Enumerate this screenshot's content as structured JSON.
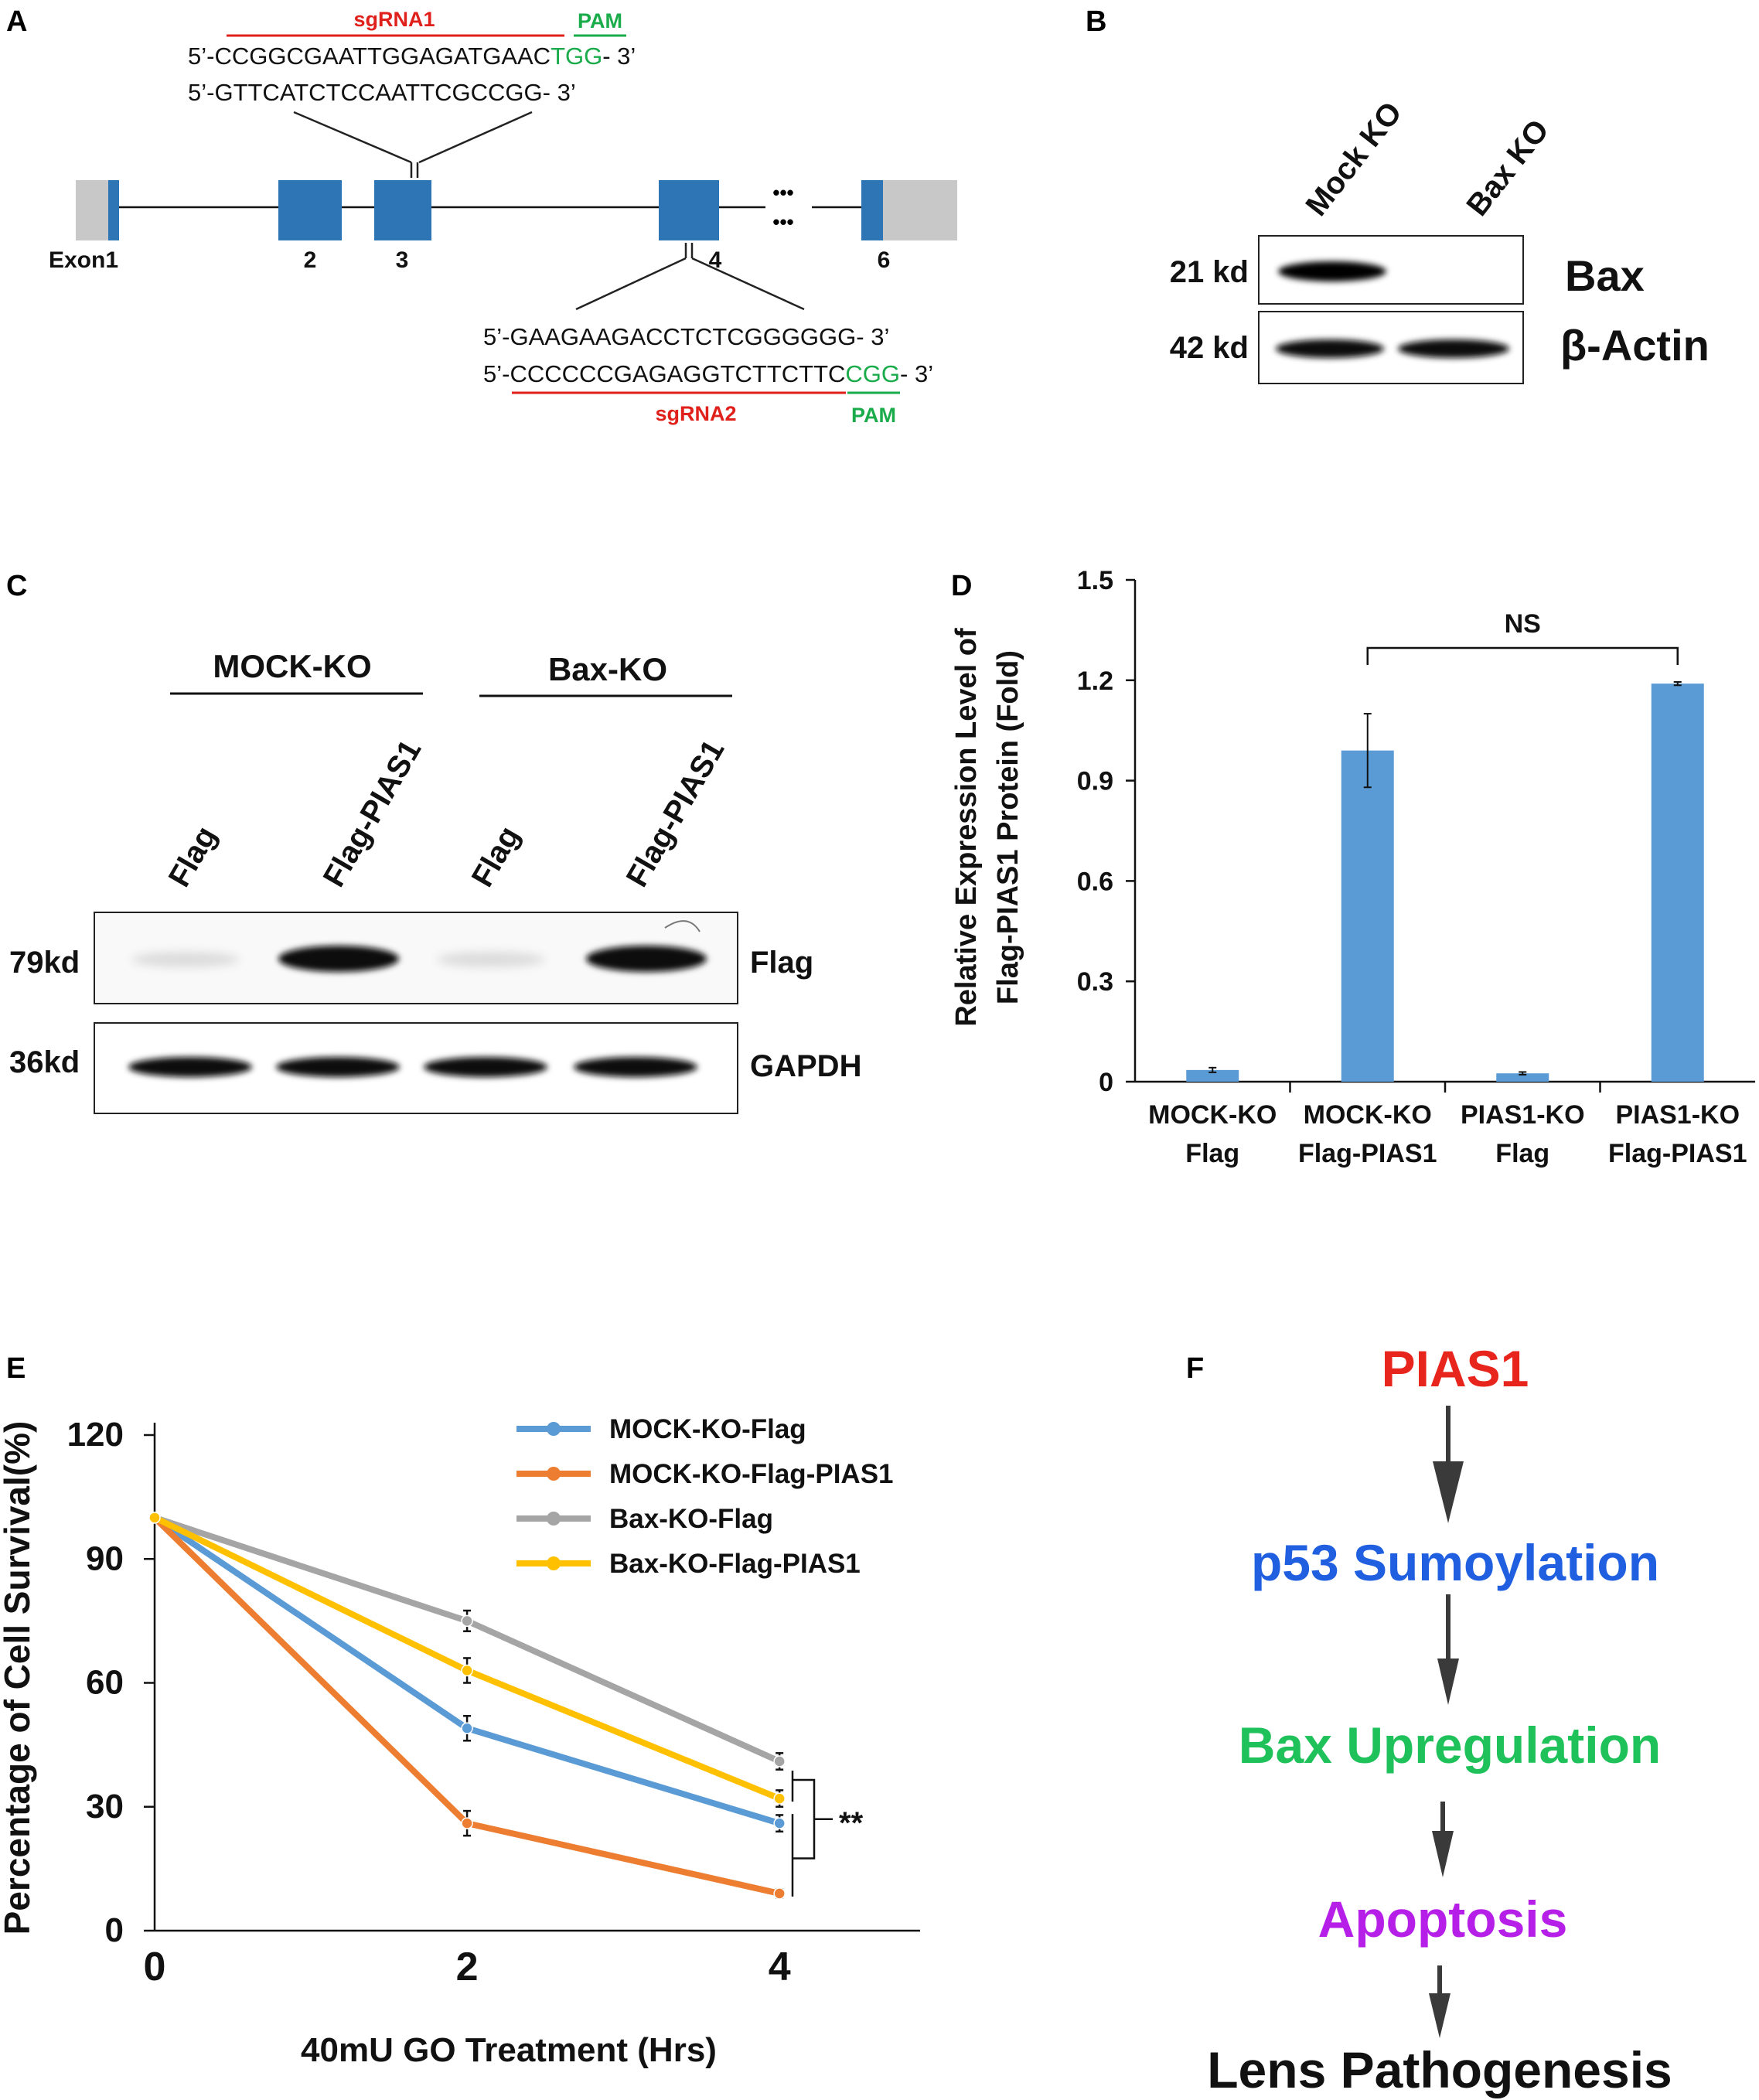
{
  "panel_labels": {
    "a": "A",
    "b": "B",
    "c": "C",
    "d": "D",
    "e": "E",
    "f": "F"
  },
  "colors": {
    "exon": "#2e75b6",
    "utr": "#c8c8c8",
    "sgrna": "#e0201b",
    "pam": "#1aab4b",
    "bar": "#5b9bd5"
  },
  "panel_a": {
    "sgrna1_label": "sgRNA1",
    "pam1_label": "PAM",
    "seq1_top_main": "5’-CCGGCGAATTGGAGATGAAC",
    "seq1_top_pam": "TGG",
    "seq1_top_end": "- 3’",
    "seq1_bottom": "5’-GTTCATCTCCAATTCGCCGG- 3’",
    "seq2_top": "5’-GAAGAAGACCTCTCGGGGGG- 3’",
    "seq2_bottom_main": "5’-CCCCCCGAGAGGTCTTCTTC",
    "seq2_bottom_pam": "CGG",
    "seq2_bottom_end": "- 3’",
    "sgrna2_label": "sgRNA2",
    "pam2_label": "PAM",
    "exon_labels": [
      "Exon1",
      "2",
      "3",
      "4",
      "6"
    ],
    "ellipsis": "•••"
  },
  "panel_b": {
    "lanes": [
      "Mock KO",
      "Bax KO"
    ],
    "rows": [
      {
        "size": "21 kd",
        "protein": "Bax"
      },
      {
        "size": "42 kd",
        "protein": "β-Actin"
      }
    ]
  },
  "panel_c": {
    "groups": [
      "MOCK-KO",
      "Bax-KO"
    ],
    "lanes": [
      "Flag",
      "Flag-PIAS1",
      "Flag",
      "Flag-PIAS1"
    ],
    "rows": [
      {
        "size": "79kd",
        "protein": "Flag"
      },
      {
        "size": "36kd",
        "protein": "GAPDH"
      }
    ]
  },
  "chart_data": [
    {
      "panel": "D",
      "type": "bar",
      "categories": [
        [
          "MOCK-KO",
          "Flag"
        ],
        [
          "MOCK-KO",
          "Flag-PIAS1"
        ],
        [
          "PIAS1-KO",
          "Flag"
        ],
        [
          "PIAS1-KO",
          "Flag-PIAS1"
        ]
      ],
      "values": [
        0.035,
        0.99,
        0.025,
        1.19
      ],
      "errors": [
        0.007,
        0.11,
        0.004,
        0.005
      ],
      "ylabel": [
        "Relative Expression Level of",
        "Flag-PIAS1 Protein (Fold)"
      ],
      "ylim": [
        0,
        1.5
      ],
      "yticks": [
        "0",
        "0.3",
        "0.6",
        "0.9",
        "1.2",
        "1.5"
      ],
      "yticks_values": [
        0,
        0.3,
        0.6,
        0.9,
        1.2,
        1.5
      ],
      "annotation": "NS",
      "color": "#5b9bd5"
    },
    {
      "panel": "E",
      "type": "line",
      "x": [
        0,
        2,
        4
      ],
      "xticks": [
        "0",
        "2",
        "4"
      ],
      "xlim": [
        0,
        4.9
      ],
      "ylim": [
        0,
        120
      ],
      "yticks": [
        "0",
        "30",
        "60",
        "90",
        "120"
      ],
      "yticks_values": [
        0,
        30,
        60,
        90,
        120
      ],
      "xlabel": "40mU GO Treatment (Hrs)",
      "ylabel": "Percentage of Cell Survival(%)",
      "series": [
        {
          "name": "MOCK-KO-Flag",
          "color": "#5b9bd5",
          "values": [
            100,
            49,
            26
          ],
          "errors": [
            0,
            3,
            2
          ]
        },
        {
          "name": "MOCK-KO-Flag-PIAS1",
          "color": "#ed7d31",
          "values": [
            100,
            26,
            9
          ],
          "errors": [
            0,
            3,
            1
          ]
        },
        {
          "name": "Bax-KO-Flag",
          "color": "#a5a5a5",
          "values": [
            100,
            75,
            41
          ],
          "errors": [
            0,
            2.5,
            2
          ]
        },
        {
          "name": "Bax-KO-Flag-PIAS1",
          "color": "#ffc000",
          "values": [
            100,
            63,
            32
          ],
          "errors": [
            0,
            3,
            2
          ]
        }
      ],
      "significance": "**"
    }
  ],
  "panel_f": {
    "steps": [
      {
        "text": "PIAS1",
        "color": "#e8251c"
      },
      {
        "text": "p53 Sumoylation",
        "color": "#1f5fe0"
      },
      {
        "text": "Bax Upregulation",
        "color": "#1fc15a"
      },
      {
        "text": "Apoptosis",
        "color": "#b51fe8"
      },
      {
        "text": "Lens Pathogenesis",
        "color": "#111111"
      }
    ]
  }
}
